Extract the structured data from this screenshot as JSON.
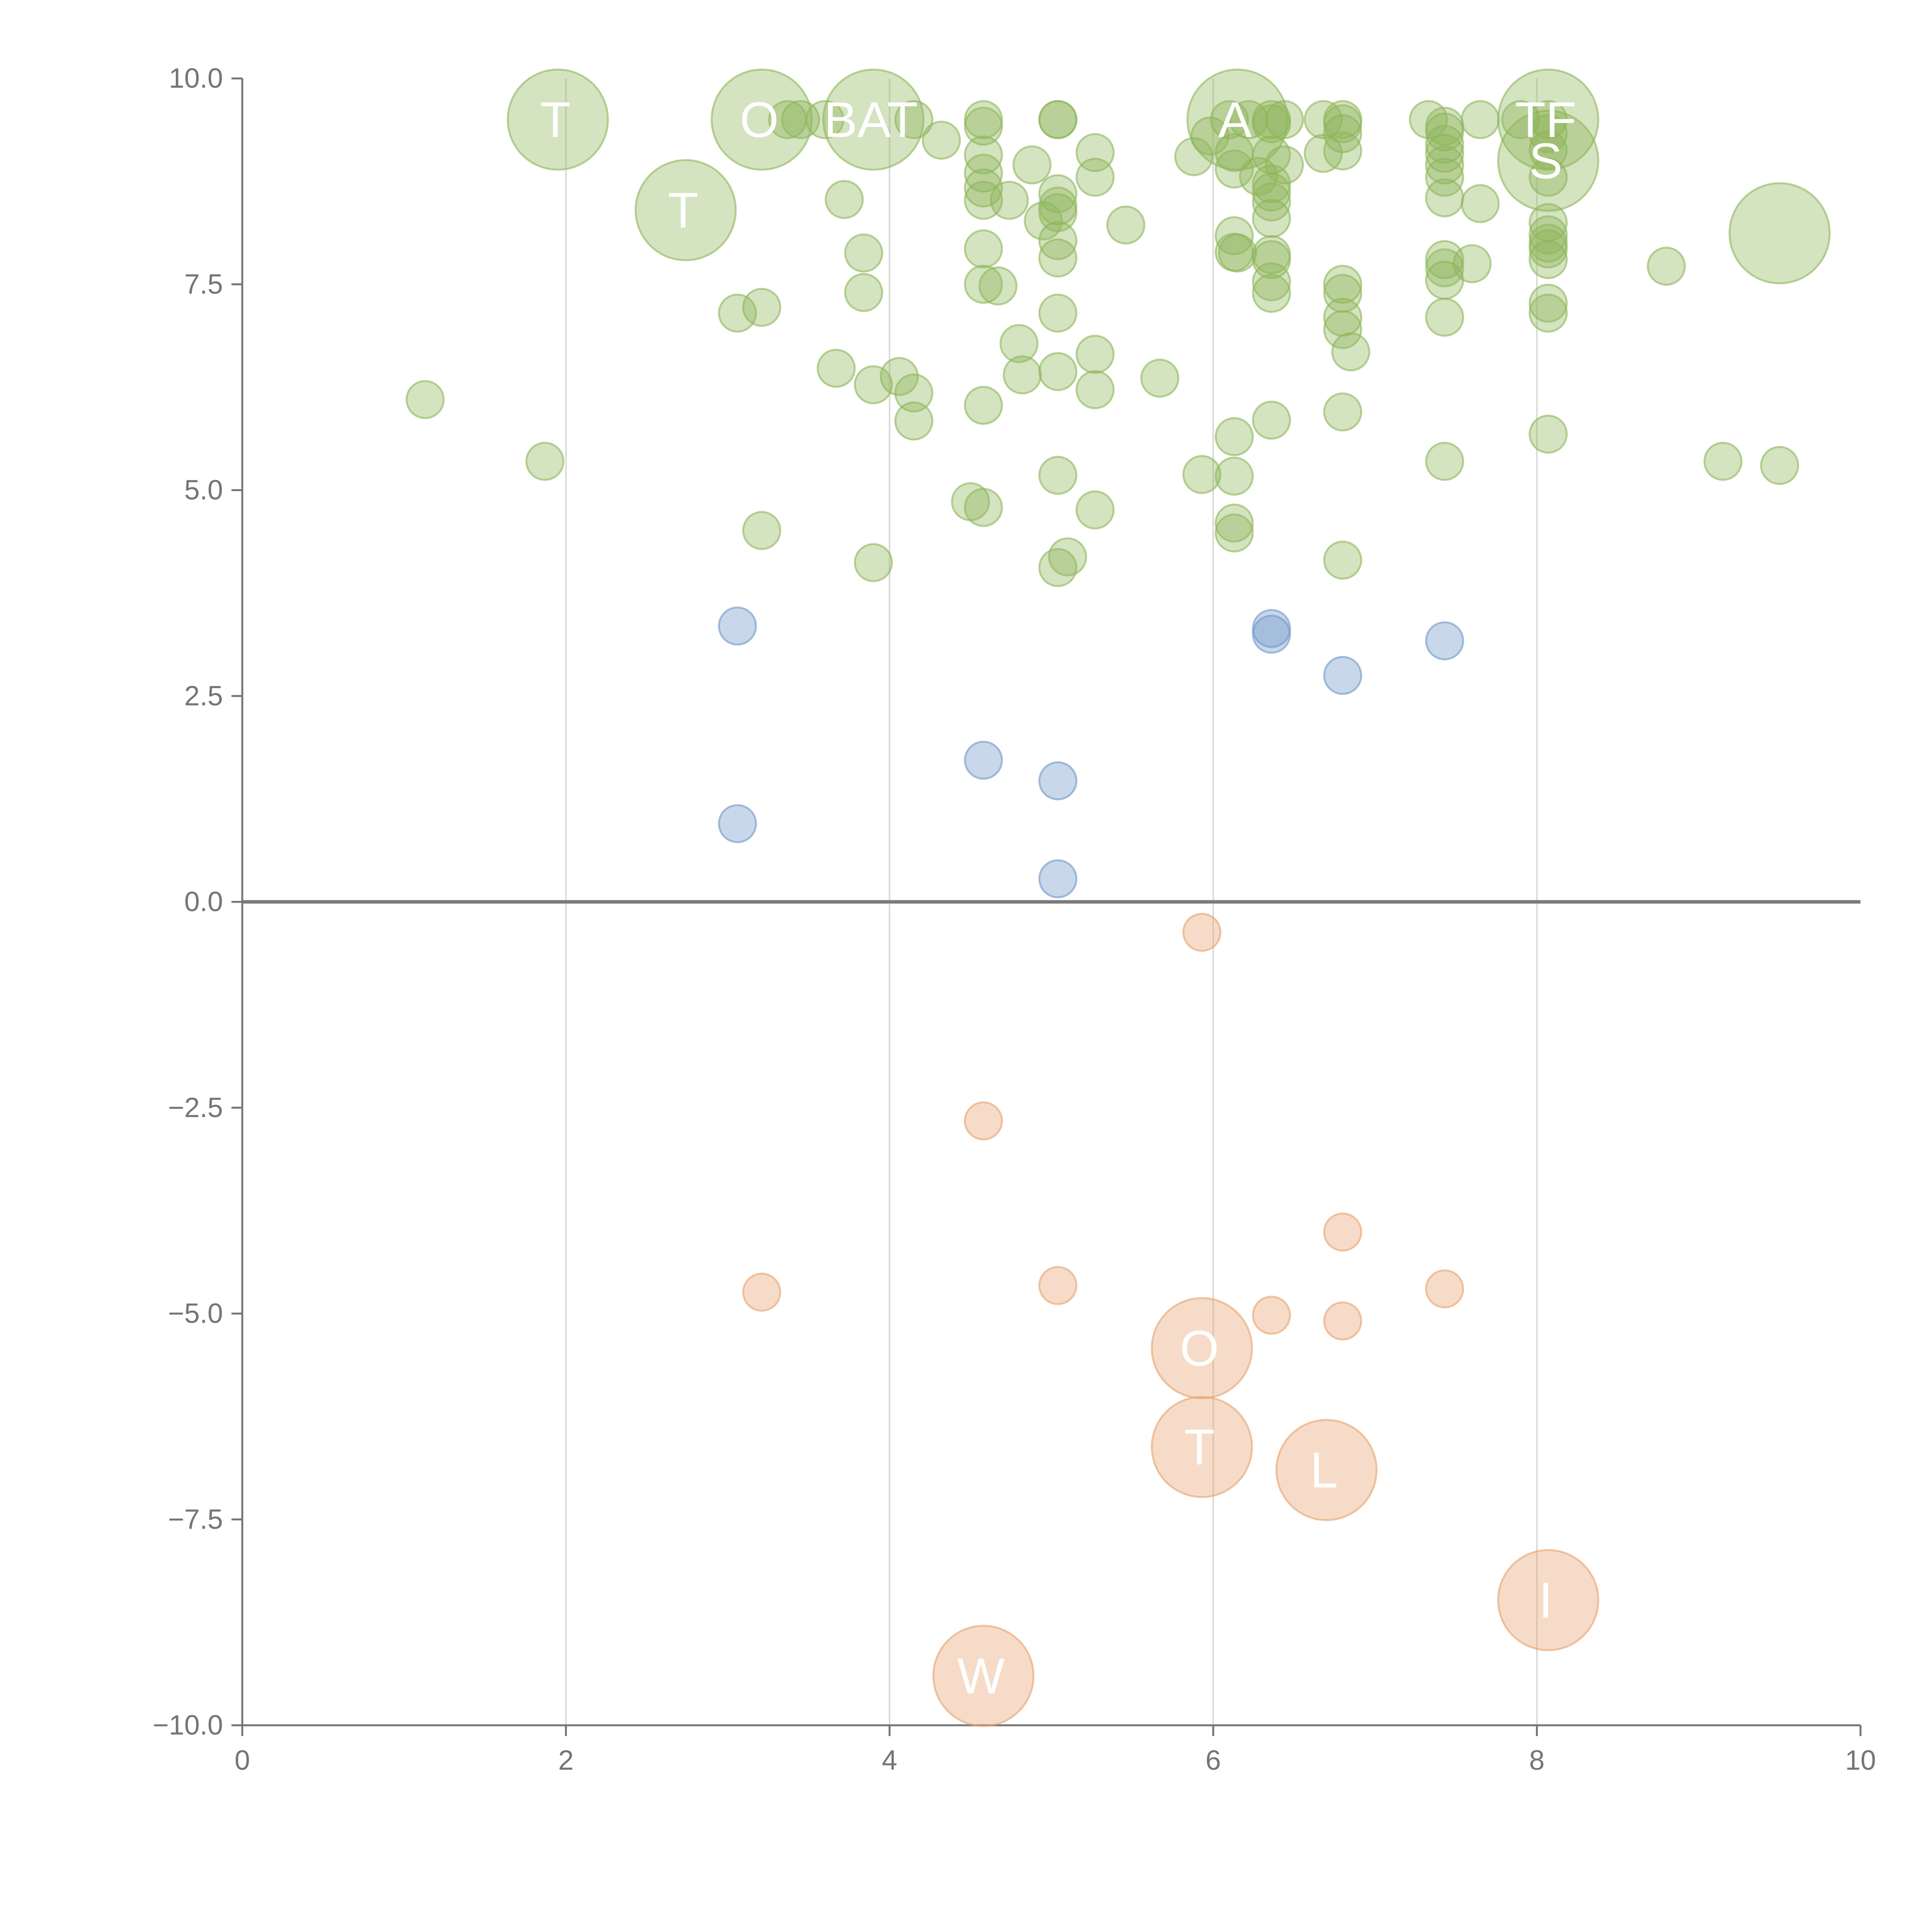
{
  "colors": {
    "positive_high": "#8db55a",
    "positive_low": "#6f97c8",
    "negative": "#e8a26e",
    "axis": "#757575",
    "grid": "#d9d9d9",
    "label": "#ffffff"
  },
  "chart_data": {
    "type": "scatter",
    "title": "",
    "xlabel": "",
    "ylabel": "",
    "xlim": [
      0,
      10
    ],
    "ylim": [
      -10,
      10
    ],
    "x_ticks": [
      0,
      2,
      4,
      6,
      8,
      10
    ],
    "x_tick_labels": [
      "0",
      "2",
      "4",
      "6",
      "8",
      "10"
    ],
    "y_ticks": [
      10,
      7.5,
      5,
      2.5,
      0,
      -2.5,
      -5,
      -7.5,
      -10
    ],
    "y_tick_labels": [
      "10.0",
      "7.5",
      "5.0",
      "2.5",
      "0.0",
      "−2.5",
      "−5.0",
      "−7.5",
      "−10.0"
    ],
    "x_grid": true,
    "y_grid": false,
    "bubble_size_scale": {
      "small": 1,
      "large": 2.7
    },
    "series": [
      {
        "name": "positive-high",
        "color_key": "positive_high",
        "points": [
          {
            "x": 1.13,
            "y": 6.1
          },
          {
            "x": 1.87,
            "y": 5.35
          },
          {
            "x": 3.06,
            "y": 7.15
          },
          {
            "x": 3.21,
            "y": 7.22
          },
          {
            "x": 3.21,
            "y": 4.51
          },
          {
            "x": 3.37,
            "y": 9.5
          },
          {
            "x": 3.45,
            "y": 9.5
          },
          {
            "x": 3.6,
            "y": 9.5
          },
          {
            "x": 3.67,
            "y": 6.48
          },
          {
            "x": 3.72,
            "y": 8.53
          },
          {
            "x": 3.84,
            "y": 7.88
          },
          {
            "x": 3.84,
            "y": 7.4
          },
          {
            "x": 3.9,
            "y": 6.28
          },
          {
            "x": 3.9,
            "y": 4.12
          },
          {
            "x": 4.06,
            "y": 6.38
          },
          {
            "x": 4.15,
            "y": 6.18
          },
          {
            "x": 4.15,
            "y": 9.5
          },
          {
            "x": 4.15,
            "y": 5.84
          },
          {
            "x": 4.32,
            "y": 9.25
          },
          {
            "x": 4.5,
            "y": 4.86
          },
          {
            "x": 4.58,
            "y": 9.5
          },
          {
            "x": 4.58,
            "y": 9.42
          },
          {
            "x": 4.58,
            "y": 9.07
          },
          {
            "x": 4.58,
            "y": 8.85
          },
          {
            "x": 4.58,
            "y": 8.67
          },
          {
            "x": 4.58,
            "y": 8.52
          },
          {
            "x": 4.58,
            "y": 7.93
          },
          {
            "x": 4.58,
            "y": 7.5
          },
          {
            "x": 4.58,
            "y": 6.03
          },
          {
            "x": 4.58,
            "y": 4.79
          },
          {
            "x": 4.67,
            "y": 7.48
          },
          {
            "x": 4.74,
            "y": 8.52
          },
          {
            "x": 4.8,
            "y": 6.78
          },
          {
            "x": 4.82,
            "y": 6.4
          },
          {
            "x": 4.88,
            "y": 8.95
          },
          {
            "x": 4.95,
            "y": 8.27
          },
          {
            "x": 5.04,
            "y": 9.5
          },
          {
            "x": 5.04,
            "y": 9.5
          },
          {
            "x": 5.04,
            "y": 8.6
          },
          {
            "x": 5.04,
            "y": 8.45
          },
          {
            "x": 5.04,
            "y": 8.37
          },
          {
            "x": 5.04,
            "y": 8.03
          },
          {
            "x": 5.04,
            "y": 7.82
          },
          {
            "x": 5.04,
            "y": 7.15
          },
          {
            "x": 5.04,
            "y": 6.44
          },
          {
            "x": 5.04,
            "y": 5.18
          },
          {
            "x": 5.04,
            "y": 4.06
          },
          {
            "x": 5.1,
            "y": 4.19
          },
          {
            "x": 5.27,
            "y": 9.1
          },
          {
            "x": 5.27,
            "y": 8.8
          },
          {
            "x": 5.27,
            "y": 6.65
          },
          {
            "x": 5.27,
            "y": 6.22
          },
          {
            "x": 5.27,
            "y": 4.76
          },
          {
            "x": 5.46,
            "y": 8.22
          },
          {
            "x": 5.67,
            "y": 6.36
          },
          {
            "x": 5.88,
            "y": 9.05
          },
          {
            "x": 5.93,
            "y": 5.19
          },
          {
            "x": 5.98,
            "y": 9.3
          },
          {
            "x": 6.1,
            "y": 9.5
          },
          {
            "x": 6.13,
            "y": 9.1
          },
          {
            "x": 6.13,
            "y": 8.9
          },
          {
            "x": 6.13,
            "y": 8.09
          },
          {
            "x": 6.13,
            "y": 7.89
          },
          {
            "x": 6.13,
            "y": 5.65
          },
          {
            "x": 6.13,
            "y": 5.17
          },
          {
            "x": 6.13,
            "y": 4.6
          },
          {
            "x": 6.13,
            "y": 4.48
          },
          {
            "x": 6.15,
            "y": 7.88
          },
          {
            "x": 6.22,
            "y": 9.5
          },
          {
            "x": 6.28,
            "y": 8.81
          },
          {
            "x": 6.36,
            "y": 9.5
          },
          {
            "x": 6.36,
            "y": 9.45
          },
          {
            "x": 6.36,
            "y": 9.07
          },
          {
            "x": 6.36,
            "y": 8.72
          },
          {
            "x": 6.36,
            "y": 8.62
          },
          {
            "x": 6.36,
            "y": 8.5
          },
          {
            "x": 6.36,
            "y": 8.3
          },
          {
            "x": 6.36,
            "y": 7.86
          },
          {
            "x": 6.36,
            "y": 7.8
          },
          {
            "x": 6.36,
            "y": 7.53
          },
          {
            "x": 6.36,
            "y": 7.39
          },
          {
            "x": 6.36,
            "y": 5.85
          },
          {
            "x": 6.44,
            "y": 9.5
          },
          {
            "x": 6.44,
            "y": 8.95
          },
          {
            "x": 6.68,
            "y": 9.5
          },
          {
            "x": 6.68,
            "y": 9.09
          },
          {
            "x": 6.8,
            "y": 9.5
          },
          {
            "x": 6.8,
            "y": 9.45
          },
          {
            "x": 6.8,
            "y": 9.33
          },
          {
            "x": 6.8,
            "y": 9.12
          },
          {
            "x": 6.8,
            "y": 7.5
          },
          {
            "x": 6.8,
            "y": 7.39
          },
          {
            "x": 6.8,
            "y": 7.1
          },
          {
            "x": 6.8,
            "y": 6.95
          },
          {
            "x": 6.8,
            "y": 5.95
          },
          {
            "x": 6.8,
            "y": 4.15
          },
          {
            "x": 6.85,
            "y": 6.68
          },
          {
            "x": 7.33,
            "y": 9.5
          },
          {
            "x": 7.43,
            "y": 9.42
          },
          {
            "x": 7.43,
            "y": 9.35
          },
          {
            "x": 7.43,
            "y": 9.2
          },
          {
            "x": 7.43,
            "y": 9.09
          },
          {
            "x": 7.43,
            "y": 8.95
          },
          {
            "x": 7.43,
            "y": 8.8
          },
          {
            "x": 7.43,
            "y": 8.55
          },
          {
            "x": 7.43,
            "y": 7.8
          },
          {
            "x": 7.43,
            "y": 7.7
          },
          {
            "x": 7.43,
            "y": 7.55
          },
          {
            "x": 7.43,
            "y": 7.1
          },
          {
            "x": 7.43,
            "y": 5.35
          },
          {
            "x": 7.6,
            "y": 7.75
          },
          {
            "x": 7.65,
            "y": 9.5
          },
          {
            "x": 7.65,
            "y": 8.48
          },
          {
            "x": 7.9,
            "y": 9.5
          },
          {
            "x": 8.07,
            "y": 9.5
          },
          {
            "x": 8.07,
            "y": 9.33
          },
          {
            "x": 8.07,
            "y": 9.13
          },
          {
            "x": 8.07,
            "y": 8.8
          },
          {
            "x": 8.07,
            "y": 8.25
          },
          {
            "x": 8.07,
            "y": 8.1
          },
          {
            "x": 8.07,
            "y": 8.0
          },
          {
            "x": 8.07,
            "y": 7.93
          },
          {
            "x": 8.07,
            "y": 7.8
          },
          {
            "x": 8.07,
            "y": 7.27
          },
          {
            "x": 8.07,
            "y": 7.15
          },
          {
            "x": 8.07,
            "y": 5.68
          },
          {
            "x": 8.8,
            "y": 7.72
          },
          {
            "x": 9.15,
            "y": 5.35
          },
          {
            "x": 9.5,
            "y": 5.3
          },
          {
            "x": 1.95,
            "y": 9.5,
            "large": true,
            "label": "T"
          },
          {
            "x": 2.74,
            "y": 8.4,
            "large": true,
            "label": "T"
          },
          {
            "x": 3.21,
            "y": 9.5,
            "large": true,
            "label": "O"
          },
          {
            "x": 3.9,
            "y": 9.5,
            "large": true,
            "label": "BAT"
          },
          {
            "x": 6.15,
            "y": 9.5,
            "large": true,
            "label": "A"
          },
          {
            "x": 8.07,
            "y": 9.5,
            "large": true,
            "label": "TF"
          },
          {
            "x": 8.07,
            "y": 9.0,
            "large": true,
            "label": "S"
          },
          {
            "x": 9.5,
            "y": 8.12,
            "large": true,
            "label": ""
          }
        ]
      },
      {
        "name": "positive-low",
        "color_key": "positive_low",
        "points": [
          {
            "x": 3.06,
            "y": 3.35
          },
          {
            "x": 3.06,
            "y": 0.95
          },
          {
            "x": 4.58,
            "y": 1.72
          },
          {
            "x": 5.04,
            "y": 1.47
          },
          {
            "x": 5.04,
            "y": 0.28
          },
          {
            "x": 6.36,
            "y": 3.32
          },
          {
            "x": 6.36,
            "y": 3.25
          },
          {
            "x": 6.8,
            "y": 2.75
          },
          {
            "x": 7.43,
            "y": 3.17
          }
        ]
      },
      {
        "name": "negative",
        "color_key": "negative",
        "points": [
          {
            "x": 5.93,
            "y": -0.37
          },
          {
            "x": 4.58,
            "y": -2.66
          },
          {
            "x": 3.21,
            "y": -4.74
          },
          {
            "x": 5.04,
            "y": -4.66
          },
          {
            "x": 6.36,
            "y": -5.02
          },
          {
            "x": 6.8,
            "y": -4.01
          },
          {
            "x": 6.8,
            "y": -5.09
          },
          {
            "x": 7.43,
            "y": -4.7
          },
          {
            "x": 5.93,
            "y": -5.42,
            "large": true,
            "label": "O"
          },
          {
            "x": 5.93,
            "y": -6.62,
            "large": true,
            "label": "T"
          },
          {
            "x": 6.7,
            "y": -6.9,
            "large": true,
            "label": "L"
          },
          {
            "x": 8.07,
            "y": -8.48,
            "large": true,
            "label": "I"
          },
          {
            "x": 4.58,
            "y": -9.4,
            "large": true,
            "label": "W"
          }
        ]
      }
    ]
  }
}
